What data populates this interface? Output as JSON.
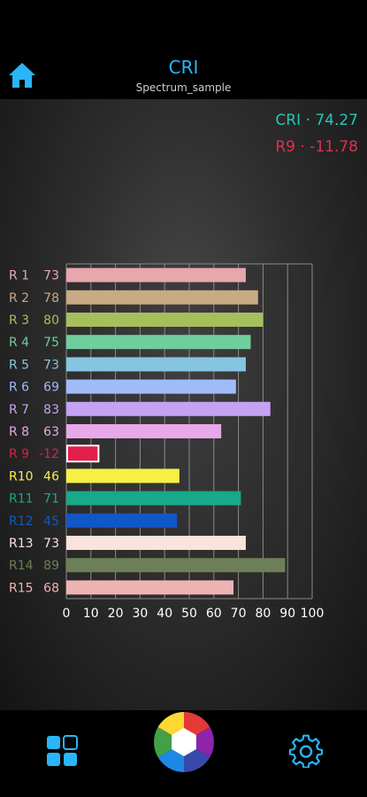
{
  "header": {
    "title": "CRI",
    "subtitle": "Spectrum_sample"
  },
  "summary": {
    "cri_text": "CRI · 74.27",
    "r9_text": "R9 · -11.78"
  },
  "chart_data": {
    "type": "bar",
    "orientation": "horizontal",
    "categories": [
      "R 1",
      "R 2",
      "R 3",
      "R 4",
      "R 5",
      "R 6",
      "R 7",
      "R 8",
      "R 9",
      "R10",
      "R11",
      "R12",
      "R13",
      "R14",
      "R15"
    ],
    "values": [
      73,
      78,
      80,
      75,
      73,
      69,
      83,
      63,
      -12,
      46,
      71,
      45,
      73,
      89,
      68
    ],
    "value_labels": [
      "73",
      "78",
      "80",
      "75",
      "73",
      "69",
      "83",
      "63",
      "-12",
      "46",
      "71",
      "45",
      "73",
      "89",
      "68"
    ],
    "colors": [
      "#e8a6ad",
      "#c9aa84",
      "#a6bf5d",
      "#6ecf9c",
      "#86c5e2",
      "#9fbcf9",
      "#c5a2f4",
      "#e9a8e7",
      "#e21e4b",
      "#f7ef46",
      "#17a988",
      "#1257c6",
      "#f9e3da",
      "#6c7f57",
      "#eeb3b3"
    ],
    "x_ticks": [
      "0",
      "10",
      "20",
      "30",
      "40",
      "50",
      "60",
      "70",
      "80",
      "90",
      "100"
    ],
    "xlim": [
      0,
      100
    ],
    "grid": true
  },
  "footer": {
    "icons": [
      "grid-icon",
      "shutter-icon",
      "gear-icon"
    ]
  }
}
